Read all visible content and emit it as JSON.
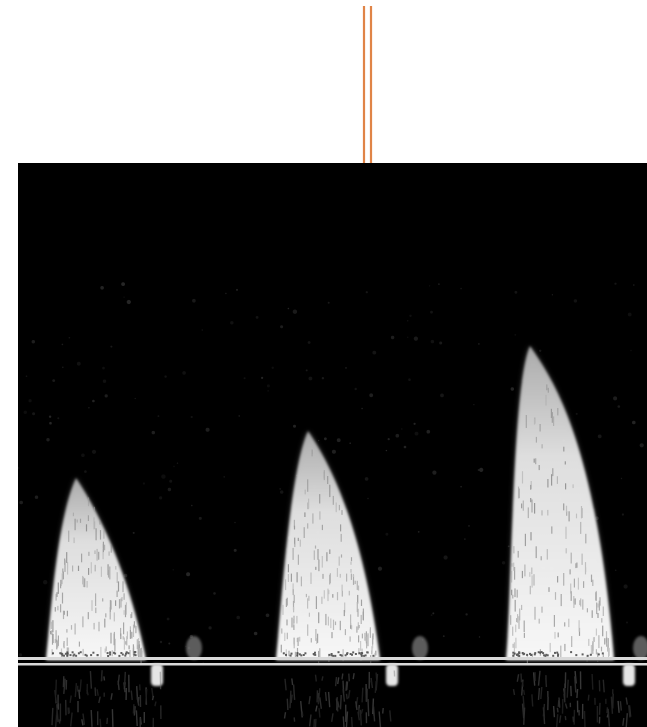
{
  "image": {
    "background_color": "#ffffff",
    "panel_color": "#000000",
    "arrow_color": "#e08447",
    "baseline_color": "#d9d9d9",
    "waveform_color": "#f2f2f2",
    "waveform_count": 3,
    "icons": [
      "down-arrow-icon"
    ]
  }
}
